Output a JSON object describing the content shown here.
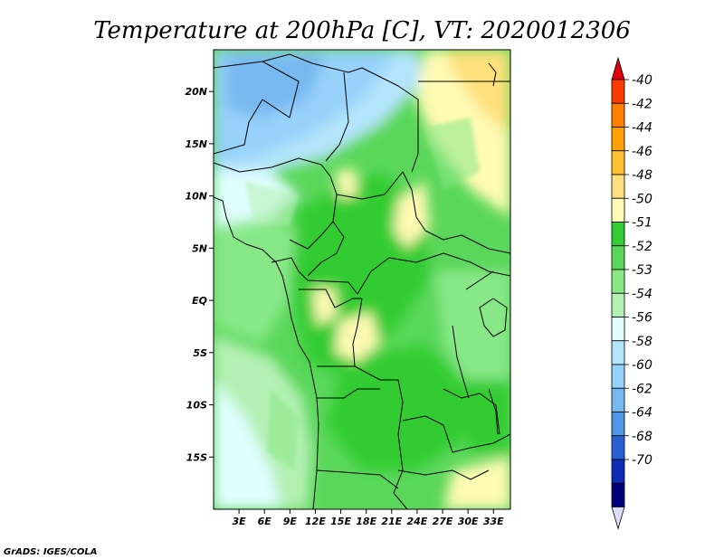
{
  "title": "Temperature at 200hPa [C], VT: 2020012306",
  "credit": "GrADS: IGES/COLA",
  "map": {
    "lon_range": [
      0,
      35
    ],
    "lat_range": [
      -20,
      24
    ],
    "x_ticks": [
      {
        "lon": 3,
        "label": "3E"
      },
      {
        "lon": 6,
        "label": "6E"
      },
      {
        "lon": 9,
        "label": "9E"
      },
      {
        "lon": 12,
        "label": "12E"
      },
      {
        "lon": 15,
        "label": "15E"
      },
      {
        "lon": 18,
        "label": "18E"
      },
      {
        "lon": 21,
        "label": "21E"
      },
      {
        "lon": 24,
        "label": "24E"
      },
      {
        "lon": 27,
        "label": "27E"
      },
      {
        "lon": 30,
        "label": "30E"
      },
      {
        "lon": 33,
        "label": "33E"
      }
    ],
    "y_ticks": [
      {
        "lat": 20,
        "label": "20N"
      },
      {
        "lat": 15,
        "label": "15N"
      },
      {
        "lat": 10,
        "label": "10N"
      },
      {
        "lat": 5,
        "label": "5N"
      },
      {
        "lat": 0,
        "label": "EQ"
      },
      {
        "lat": -5,
        "label": "5S"
      },
      {
        "lat": -10,
        "label": "10S"
      },
      {
        "lat": -15,
        "label": "15S"
      }
    ]
  },
  "colorbar": {
    "labels": [
      "-40",
      "-42",
      "-44",
      "-46",
      "-48",
      "-50",
      "-51",
      "-52",
      "-53",
      "-54",
      "-56",
      "-58",
      "-60",
      "-62",
      "-64",
      "-68",
      "-70"
    ],
    "colors": [
      "#fa3c00",
      "#fe7e00",
      "#fe9e00",
      "#fec033",
      "#fee07c",
      "#fffab4",
      "#33cc33",
      "#5ad75a",
      "#88e888",
      "#b4f0b4",
      "#e0fefe",
      "#b4e4fa",
      "#96d2fa",
      "#78b8f0",
      "#5096e8",
      "#2860d2",
      "#0f2ab4",
      "#000078"
    ],
    "top_cap": "#e0000c",
    "bottom_cap": "#dcdcf5"
  }
}
